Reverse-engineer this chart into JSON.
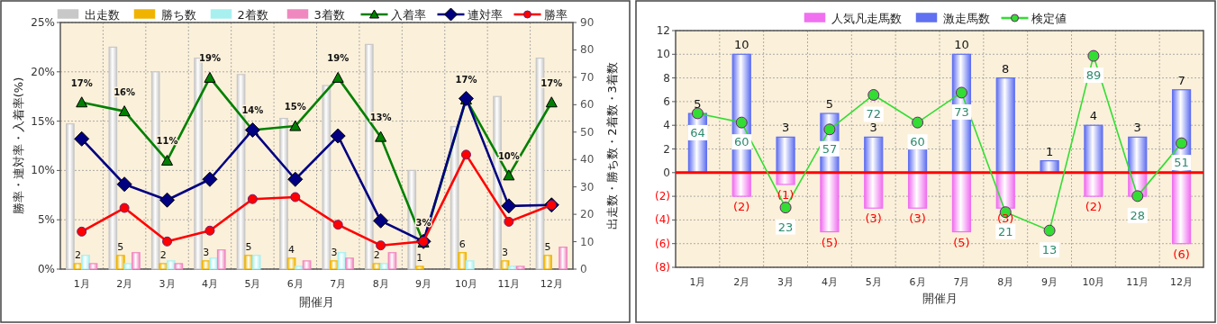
{
  "chart_data": [
    {
      "type": "bar",
      "legend": "top",
      "grid": true,
      "xlabel": "開催月",
      "ylabel": "勝率・連対率・入着率(%)",
      "y2label": "出走数・勝ち数・2着数・3着数",
      "categories": [
        "1月",
        "2月",
        "3月",
        "4月",
        "5月",
        "6月",
        "7月",
        "8月",
        "9月",
        "10月",
        "11月",
        "12月"
      ],
      "ylim": [
        0,
        25
      ],
      "yticks": [
        {
          "value": 0,
          "label": "0%"
        },
        {
          "value": 5,
          "label": "5%"
        },
        {
          "value": 10,
          "label": "10%"
        },
        {
          "value": 15,
          "label": "15%"
        },
        {
          "value": 20,
          "label": "20%"
        },
        {
          "value": 25,
          "label": "25%"
        }
      ],
      "y2lim": [
        0,
        90
      ],
      "y2ticks": [
        0,
        10,
        20,
        30,
        40,
        50,
        60,
        70,
        80,
        90
      ],
      "series": [
        {
          "name": "出走数",
          "color": "#c8c8c8",
          "axis": "y2",
          "values": [
            53,
            81,
            72,
            77,
            71,
            55,
            67,
            82,
            36,
            52,
            63,
            77
          ]
        },
        {
          "name": "勝ち数",
          "color": "#f0b400",
          "axis": "y2",
          "values": [
            2,
            5,
            2,
            3,
            5,
            4,
            3,
            2,
            1,
            6,
            3,
            5
          ],
          "value_labels": [
            "2",
            "5",
            "2",
            "3",
            "5",
            "4",
            "3",
            "2",
            "1",
            "6",
            "3",
            "5"
          ]
        },
        {
          "name": "2着数",
          "color": "#a8f0f0",
          "axis": "y2",
          "values": [
            5,
            2,
            3,
            4,
            5,
            1,
            6,
            2,
            0,
            3,
            1,
            0
          ]
        },
        {
          "name": "3着数",
          "color": "#f088c0",
          "axis": "y2",
          "values": [
            2,
            6,
            2,
            7,
            0,
            3,
            4,
            6,
            0,
            0,
            1,
            8
          ]
        },
        {
          "name": "入着率",
          "type": "line",
          "marker": "triangle",
          "color": "#008000",
          "values": [
            16.9,
            16.0,
            11.0,
            19.4,
            14.1,
            14.5,
            19.4,
            13.4,
            2.7,
            17.2,
            9.5,
            16.9
          ],
          "value_labels": [
            "17%",
            "16%",
            "11%",
            "19%",
            "14%",
            "15%",
            "19%",
            "13%",
            "3%",
            "17%",
            "10%",
            "17%"
          ]
        },
        {
          "name": "連対率",
          "type": "line",
          "marker": "diamond",
          "color": "#000080",
          "values": [
            13.2,
            8.6,
            7.0,
            9.1,
            14.1,
            9.1,
            13.5,
            4.9,
            2.8,
            17.3,
            6.4,
            6.5
          ]
        },
        {
          "name": "勝率",
          "type": "line",
          "marker": "circle",
          "color": "#ff0000",
          "values": [
            3.8,
            6.2,
            2.8,
            3.9,
            7.1,
            7.3,
            4.5,
            2.4,
            2.8,
            11.6,
            4.8,
            6.5
          ]
        }
      ]
    },
    {
      "type": "bar",
      "stacked": true,
      "legend": "top",
      "grid": true,
      "xlabel": "開催月",
      "categories": [
        "1月",
        "2月",
        "3月",
        "4月",
        "5月",
        "6月",
        "7月",
        "8月",
        "9月",
        "10月",
        "11月",
        "12月"
      ],
      "ylim": [
        -8,
        12
      ],
      "yticks": [
        {
          "value": -8,
          "label": "(8)"
        },
        {
          "value": -6,
          "label": "(6)"
        },
        {
          "value": -4,
          "label": "(4)"
        },
        {
          "value": -2,
          "label": "(2)"
        },
        0,
        2,
        4,
        6,
        8,
        10,
        12
      ],
      "y2lim": [
        -3,
        100
      ],
      "ref_lines": [
        {
          "axis": "y",
          "value": 0,
          "color": "#ff0000"
        }
      ],
      "series": [
        {
          "name": "人気凡走馬数",
          "color": "#f070f0",
          "values": [
            0,
            -2,
            -1,
            -5,
            -3,
            -3,
            -5,
            -3,
            0,
            -2,
            -2,
            -6
          ],
          "value_labels": [
            null,
            "(2)",
            "(1)",
            "(5)",
            "(3)",
            "(3)",
            "(5)",
            "(3)",
            null,
            "(2)",
            null,
            "(6)"
          ]
        },
        {
          "name": "激走馬数",
          "color": "#6070f0",
          "values": [
            5,
            10,
            3,
            5,
            3,
            2,
            10,
            8,
            1,
            4,
            3,
            7
          ],
          "value_labels": [
            "5",
            "10",
            "3",
            "5",
            "3",
            null,
            "10",
            "8",
            "1",
            "4",
            "3",
            "7"
          ]
        },
        {
          "name": "検定値",
          "type": "line",
          "marker": "circle",
          "axis": "y2",
          "color": "#33dd33",
          "values": [
            64,
            60,
            23,
            57,
            72,
            60,
            73,
            21,
            13,
            89,
            28,
            51
          ],
          "value_labels": [
            "64",
            "60",
            "23",
            "57",
            "72",
            "60",
            "73",
            "21",
            "13",
            "89",
            "28",
            "51"
          ]
        }
      ]
    }
  ]
}
